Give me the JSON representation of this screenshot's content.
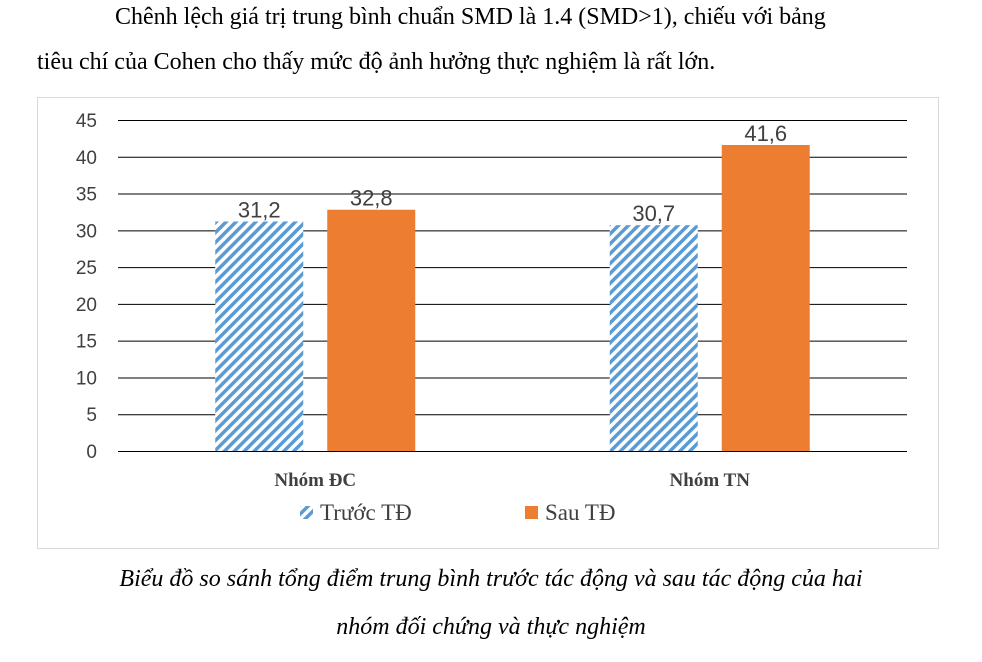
{
  "paragraph": {
    "line1": "Chênh lệch giá trị trung bình chuẩn SMD là  1.4 (SMD>1), chiếu với bảng",
    "line2": "tiêu chí của Cohen cho thấy mức độ ảnh hưởng thực nghiệm là rất lớn."
  },
  "chart_data": {
    "type": "bar",
    "categories": [
      "Nhóm ĐC",
      "Nhóm TN"
    ],
    "series": [
      {
        "name": "Trước TĐ",
        "values": [
          31.2,
          30.7
        ],
        "labels": [
          "31,2",
          "30,7"
        ],
        "color": "#5B9BD5",
        "pattern": "diagonal-hatch"
      },
      {
        "name": "Sau TĐ",
        "values": [
          32.8,
          41.6
        ],
        "labels": [
          "32,8",
          "41,6"
        ],
        "color": "#ED7D31",
        "pattern": "solid"
      }
    ],
    "ylim": [
      0,
      45
    ],
    "yticks": [
      "0",
      "5",
      "10",
      "15",
      "20",
      "25",
      "30",
      "35",
      "40",
      "45"
    ],
    "grid": true,
    "legend": "bottom",
    "title": "",
    "xlabel": "",
    "ylabel": ""
  },
  "caption": {
    "line1": "Biểu đồ so sánh tổng điểm trung bình trước tác động và sau tác động của hai",
    "line2": "nhóm đối chứng và thực nghiệm"
  }
}
